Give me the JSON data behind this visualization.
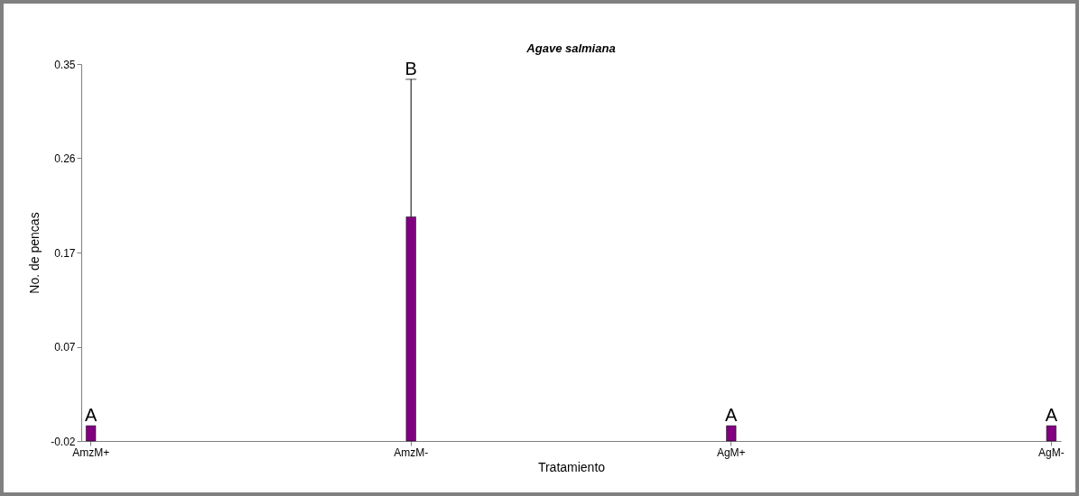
{
  "chart_data": {
    "type": "bar",
    "title": "Agave salmiana",
    "xlabel": "Tratamiento",
    "ylabel": "No. de pencas",
    "categories": [
      "AmzM+",
      "AmzM-",
      "AgM+",
      "AgM-"
    ],
    "values": [
      0.015,
      0.22,
      0.015,
      0.015
    ],
    "base": [
      -0.02,
      -0.02,
      -0.02,
      -0.02
    ],
    "color": "#800080",
    "errors": [
      null,
      [
        0.2,
        0.335
      ],
      null,
      null
    ],
    "ylim": [
      -0.02,
      0.35
    ],
    "yticks": [
      -0.02,
      {
        "value": 0.0725,
        "label": "0.07"
      },
      {
        "value": 0.165,
        "label": "0.17"
      },
      {
        "value": 0.2575,
        "label": "0.26"
      },
      0.35
    ],
    "annotations": [
      {
        "text": "A",
        "x": "AmzM+",
        "y": -0.005
      },
      {
        "text": "B",
        "x": "AmzM-",
        "y": 0.335
      },
      {
        "text": "A",
        "x": "AgM+",
        "y": -0.005
      },
      {
        "text": "A",
        "x": "AgM-",
        "y": -0.005
      }
    ],
    "grid": false
  }
}
